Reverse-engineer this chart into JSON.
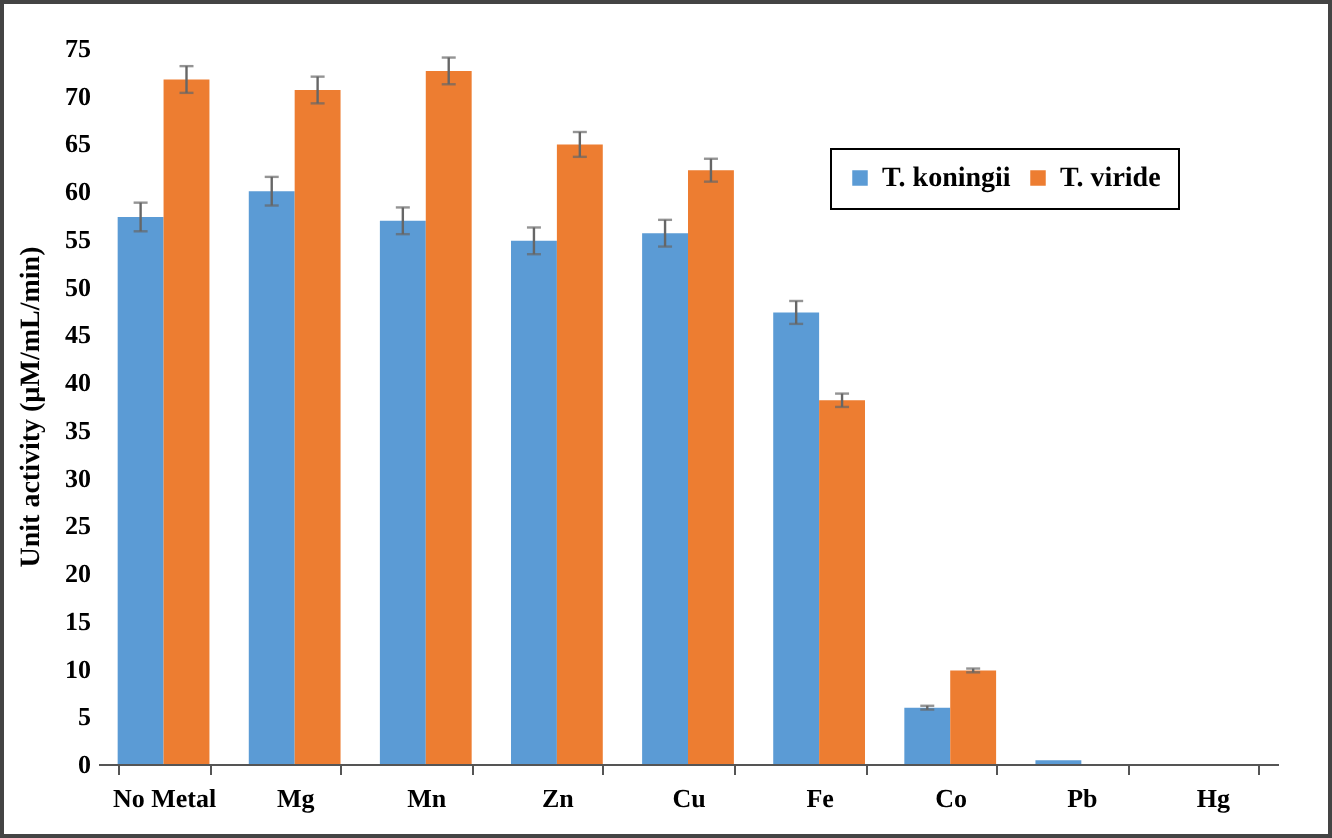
{
  "chart_data": {
    "type": "bar",
    "ylabel": "Unit activity (µM/mL/min)",
    "categories": [
      "No Metal",
      "Mg",
      "Mn",
      "Zn",
      "Cu",
      "Fe",
      "Co",
      "Pb",
      "Hg"
    ],
    "series": [
      {
        "name": "T. koningii",
        "color": "#5b9bd5",
        "values": [
          57.3,
          60.0,
          56.9,
          54.8,
          55.6,
          47.3,
          5.9,
          0.4,
          0
        ],
        "errors": [
          1.5,
          1.5,
          1.4,
          1.4,
          1.4,
          1.2,
          0.2,
          null,
          null
        ]
      },
      {
        "name": "T. viride",
        "color": "#ed7d31",
        "values": [
          71.7,
          70.6,
          72.6,
          64.9,
          62.2,
          38.1,
          9.8,
          0,
          0
        ],
        "errors": [
          1.4,
          1.4,
          1.4,
          1.3,
          1.2,
          0.7,
          0.2,
          null,
          null
        ]
      }
    ],
    "ylim": [
      0,
      75
    ],
    "yticks": [
      0,
      5,
      10,
      15,
      20,
      25,
      30,
      35,
      40,
      45,
      50,
      55,
      60,
      65,
      70,
      75
    ],
    "grid": false,
    "legend": "top right"
  }
}
